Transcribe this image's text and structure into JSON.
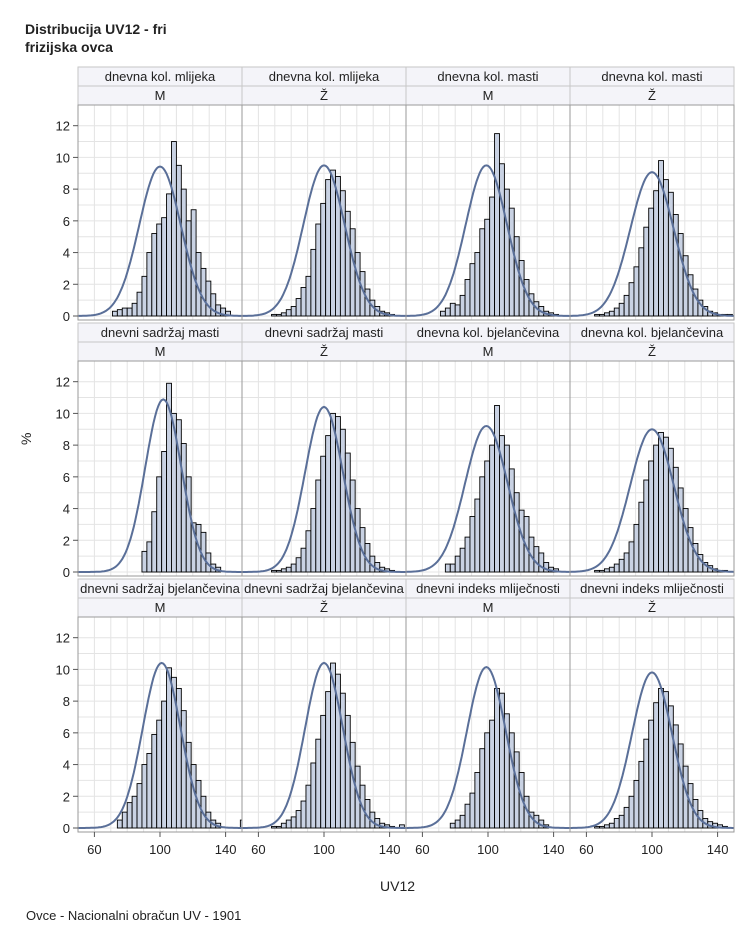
{
  "title_lines": [
    "Distribucija UV12 - fri",
    "frizijska ovca"
  ],
  "footnote": "Ovce - Nacionalni obračun UV - 1901",
  "colors": {
    "bar_fill": "#c9d2e3",
    "bar_stroke": "#000000",
    "curve": "#5a6f98",
    "grid": "#e4e4e4",
    "header_fill": "#f4f4f9",
    "frame": "#9a9a9a"
  },
  "chart_data": {
    "type": "histogram-panel",
    "xlabel": "UV12",
    "ylabel": "%",
    "x_ticks": [
      60,
      100,
      140
    ],
    "y_ticks": [
      0,
      2,
      4,
      6,
      8,
      10,
      12
    ],
    "xlim": [
      50,
      150
    ],
    "ylim": [
      0,
      12.8
    ],
    "grid": true,
    "bin_width": 3,
    "bins_start": 50,
    "panels": [
      {
        "trait": "dnevna kol. mlijeka",
        "sex": "M",
        "mean": 100,
        "sd": 12.7,
        "values": [
          0,
          0,
          0,
          0,
          0,
          0,
          0,
          0.3,
          0.4,
          0.5,
          0.5,
          0.8,
          1.5,
          2.5,
          4.0,
          5.2,
          5.8,
          6.2,
          7.7,
          11.0,
          9.5,
          8.0,
          6.0,
          6.7,
          4.0,
          3.0,
          2.2,
          1.4,
          0.7,
          0.5,
          0.3,
          0,
          0,
          0
        ]
      },
      {
        "trait": "dnevna kol. mlijeka",
        "sex": "Ž",
        "mean": 100,
        "sd": 12.6,
        "values": [
          0,
          0,
          0,
          0,
          0,
          0,
          0.1,
          0.1,
          0.2,
          0.4,
          0.6,
          1.1,
          1.8,
          2.5,
          4.2,
          5.8,
          7.1,
          8.6,
          9.2,
          8.8,
          7.9,
          6.6,
          5.5,
          4.0,
          2.8,
          1.7,
          1.0,
          0.6,
          0.3,
          0.2,
          0.1,
          0,
          0,
          0
        ]
      },
      {
        "trait": "dnevna kol. masti",
        "sex": "M",
        "mean": 99,
        "sd": 12.6,
        "values": [
          0,
          0,
          0,
          0,
          0,
          0,
          0,
          0.3,
          0.5,
          0.8,
          0.7,
          1.3,
          2.3,
          3.3,
          4.0,
          5.5,
          6.1,
          7.5,
          11.5,
          9.6,
          8.0,
          6.8,
          5.0,
          3.5,
          2.3,
          1.4,
          0.9,
          0.6,
          0.3,
          0.2,
          0.1,
          0,
          0,
          0
        ]
      },
      {
        "trait": "dnevna kol. masti",
        "sex": "Ž",
        "mean": 100,
        "sd": 13.2,
        "values": [
          0,
          0,
          0,
          0,
          0,
          0.1,
          0.1,
          0.2,
          0.3,
          0.5,
          0.8,
          1.3,
          2.1,
          3.1,
          4.3,
          5.6,
          6.8,
          7.9,
          9.8,
          8.6,
          7.8,
          6.4,
          5.2,
          3.8,
          2.6,
          1.7,
          1.0,
          0.6,
          0.3,
          0.2,
          0.1,
          0.1,
          0.1,
          0
        ]
      },
      {
        "trait": "dnevni sadržaj masti",
        "sex": "M",
        "mean": 102,
        "sd": 11,
        "values": [
          0,
          0,
          0,
          0,
          0,
          0,
          0,
          0,
          0,
          0,
          0,
          0,
          0,
          1.3,
          1.9,
          3.8,
          6.0,
          7.6,
          11.9,
          10.0,
          9.6,
          8.1,
          6.0,
          3.1,
          3.0,
          2.5,
          1.2,
          0.5,
          0.3,
          0,
          0,
          0,
          0,
          0
        ]
      },
      {
        "trait": "dnevni sadržaj masti",
        "sex": "Ž",
        "mean": 100,
        "sd": 11.5,
        "values": [
          0,
          0,
          0,
          0,
          0,
          0,
          0.1,
          0.1,
          0.2,
          0.3,
          0.5,
          0.9,
          1.5,
          2.6,
          4.0,
          5.8,
          7.3,
          8.6,
          10.0,
          9.8,
          9.0,
          7.5,
          5.8,
          4.0,
          2.8,
          1.8,
          1.0,
          0.6,
          0.3,
          0.2,
          0.1,
          0,
          0,
          0
        ]
      },
      {
        "trait": "dnevna kol. bjelančevina",
        "sex": "M",
        "mean": 99,
        "sd": 13,
        "values": [
          0,
          0,
          0,
          0,
          0,
          0,
          0,
          0,
          0.5,
          0.5,
          1.0,
          1.5,
          2.2,
          3.5,
          4.6,
          6.0,
          7.0,
          8.0,
          10.5,
          8.6,
          8.0,
          6.5,
          5.0,
          3.9,
          3.5,
          2.2,
          1.6,
          1.2,
          0.6,
          0.3,
          0.2,
          0,
          0,
          0
        ]
      },
      {
        "trait": "dnevna kol. bjelančevina",
        "sex": "Ž",
        "mean": 100,
        "sd": 13.3,
        "values": [
          0,
          0,
          0,
          0,
          0,
          0.1,
          0.1,
          0.2,
          0.3,
          0.5,
          0.8,
          1.2,
          1.9,
          3.0,
          4.4,
          5.8,
          7.0,
          8.0,
          8.8,
          8.5,
          7.8,
          6.6,
          5.3,
          4.0,
          2.8,
          1.8,
          1.1,
          0.6,
          0.4,
          0.2,
          0.1,
          0.1,
          0,
          0
        ]
      },
      {
        "trait": "dnevni sadržaj bjelančevina",
        "sex": "M",
        "mean": 101,
        "sd": 11.5,
        "values": [
          0,
          0,
          0,
          0,
          0,
          0,
          0,
          0,
          0.5,
          1.0,
          1.6,
          2.0,
          2.8,
          4.0,
          4.7,
          5.9,
          6.8,
          8.0,
          10.1,
          9.5,
          8.8,
          7.4,
          5.4,
          4.0,
          3.0,
          2.0,
          1.0,
          0.5,
          0.3,
          0,
          0,
          0,
          0,
          0.5
        ]
      },
      {
        "trait": "dnevni sadržaj bjelančevina",
        "sex": "Ž",
        "mean": 100,
        "sd": 11.5,
        "values": [
          0,
          0,
          0,
          0,
          0,
          0,
          0.1,
          0.1,
          0.3,
          0.5,
          0.7,
          1.1,
          1.7,
          2.7,
          4.1,
          5.6,
          7.1,
          8.6,
          10.4,
          9.7,
          8.5,
          7.1,
          5.4,
          3.9,
          2.7,
          1.8,
          1.0,
          0.6,
          0.3,
          0.2,
          0.1,
          0,
          0.2,
          0
        ]
      },
      {
        "trait": "dnevni indeks mliječnosti",
        "sex": "M",
        "mean": 99,
        "sd": 11.8,
        "values": [
          0,
          0,
          0,
          0,
          0,
          0,
          0,
          0,
          0,
          0.3,
          0.5,
          0.8,
          1.5,
          2.2,
          3.5,
          5.0,
          6.0,
          6.8,
          8.8,
          8.5,
          7.2,
          6.0,
          4.8,
          3.5,
          2.0,
          1.0,
          0.8,
          0.5,
          0.2,
          0,
          0,
          0,
          0,
          0
        ]
      },
      {
        "trait": "dnevni indeks mliječnosti",
        "sex": "Ž",
        "mean": 100,
        "sd": 12.2,
        "values": [
          0,
          0,
          0,
          0,
          0,
          0.1,
          0.1,
          0.2,
          0.3,
          0.6,
          0.8,
          1.3,
          2.0,
          3.0,
          4.2,
          5.6,
          6.8,
          7.9,
          8.8,
          8.6,
          7.7,
          6.5,
          5.3,
          3.9,
          2.8,
          1.8,
          1.1,
          0.6,
          0.4,
          0.3,
          0.2,
          0.1,
          0,
          0
        ]
      }
    ]
  }
}
